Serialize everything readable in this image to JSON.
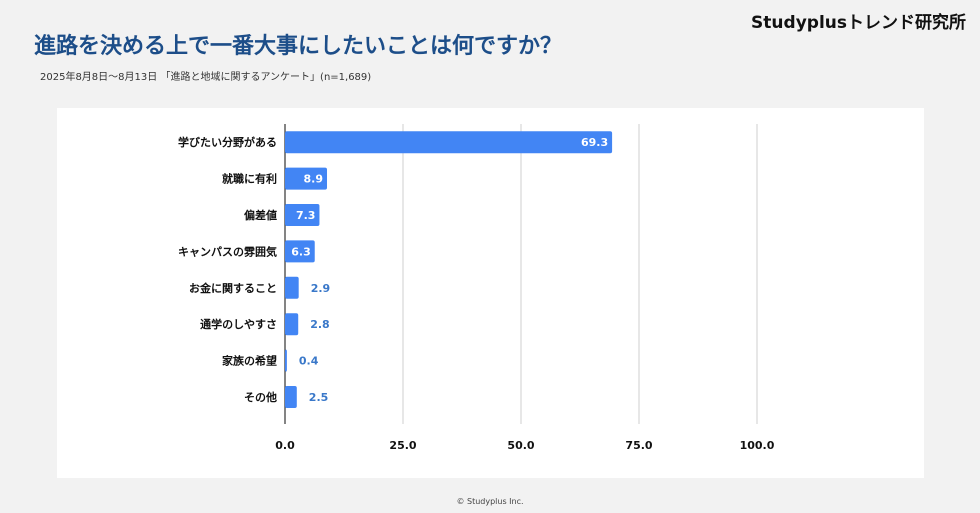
{
  "brand": "Studyplusトレンド研究所",
  "title": "進路を決める上で一番大事にしたいことは何ですか？",
  "subtitle": "2025年8月8日～8月13日 「進路と地域に関するアンケート」(n=1,689)",
  "footer": "© Studyplus Inc.",
  "colors": {
    "bar": "#4285f4",
    "label_outside": "#3a78c9",
    "title": "#1d4e89"
  },
  "chart_data": {
    "type": "bar",
    "orientation": "horizontal",
    "categories": [
      "学びたい分野がある",
      "就職に有利",
      "偏差値",
      "キャンパスの雰囲気",
      "お金に関すること",
      "通学のしやすさ",
      "家族の希望",
      "その他"
    ],
    "values": [
      69.3,
      8.9,
      7.3,
      6.3,
      2.9,
      2.8,
      0.4,
      2.5
    ],
    "xlim": [
      0,
      100
    ],
    "xticks": [
      0,
      25,
      50,
      75,
      100
    ],
    "xtick_labels": [
      "0.0",
      "25.0",
      "50.0",
      "75.0",
      "100.0"
    ],
    "grid": true,
    "legend": "none",
    "xlabel": "",
    "ylabel": ""
  }
}
